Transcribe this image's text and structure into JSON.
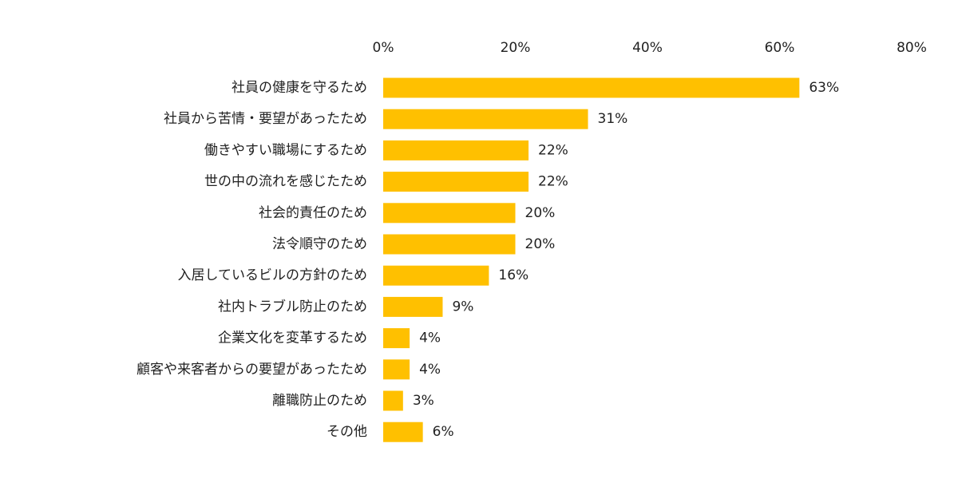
{
  "chart_data": {
    "type": "bar",
    "orientation": "horizontal",
    "title": "",
    "xlabel": "",
    "ylabel": "",
    "xlim": [
      0,
      80
    ],
    "x_ticks": [
      "0%",
      "20%",
      "40%",
      "60%",
      "80%"
    ],
    "x_tick_values": [
      0,
      20,
      40,
      60,
      80
    ],
    "x_axis_position": "top",
    "grid": false,
    "legend": "none",
    "bar_color": "#FFC000",
    "categories": [
      "社員の健康を守るため",
      "社員から苦情・要望があったため",
      "働きやすい職場にするため",
      "世の中の流れを感じたため",
      "社会的責任のため",
      "法令順守のため",
      "入居しているビルの方針のため",
      "社内トラブル防止のため",
      "企業文化を変革するため",
      "顧客や来客者からの要望があったため",
      "離職防止のため",
      "その他"
    ],
    "values": [
      63,
      31,
      22,
      22,
      20,
      20,
      16,
      9,
      4,
      4,
      3,
      6
    ],
    "value_labels": [
      "63%",
      "31%",
      "22%",
      "22%",
      "20%",
      "20%",
      "16%",
      "9%",
      "4%",
      "4%",
      "3%",
      "6%"
    ]
  }
}
